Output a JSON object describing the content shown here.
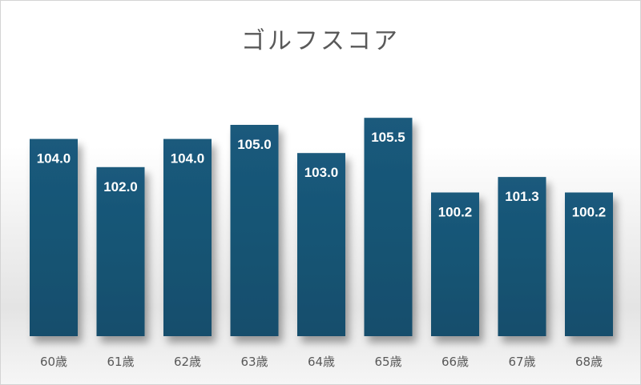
{
  "chart_data": {
    "type": "bar",
    "title": "ゴルフスコア",
    "categories": [
      "60歳",
      "61歳",
      "62歳",
      "63歳",
      "64歳",
      "65歳",
      "66歳",
      "67歳",
      "68歳"
    ],
    "values": [
      104.0,
      102.0,
      104.0,
      105.0,
      103.0,
      105.5,
      100.2,
      101.3,
      100.2
    ],
    "value_labels": [
      "104.0",
      "102.0",
      "104.0",
      "105.0",
      "103.0",
      "105.5",
      "100.2",
      "101.3",
      "100.2"
    ],
    "xlabel": "",
    "ylabel": "",
    "ylim": [
      90,
      110
    ],
    "grid": false,
    "legend": "none",
    "bar_color_top": "#1a5a7c",
    "bar_color_bottom": "#164e6c",
    "label_color": "#ffffff"
  }
}
